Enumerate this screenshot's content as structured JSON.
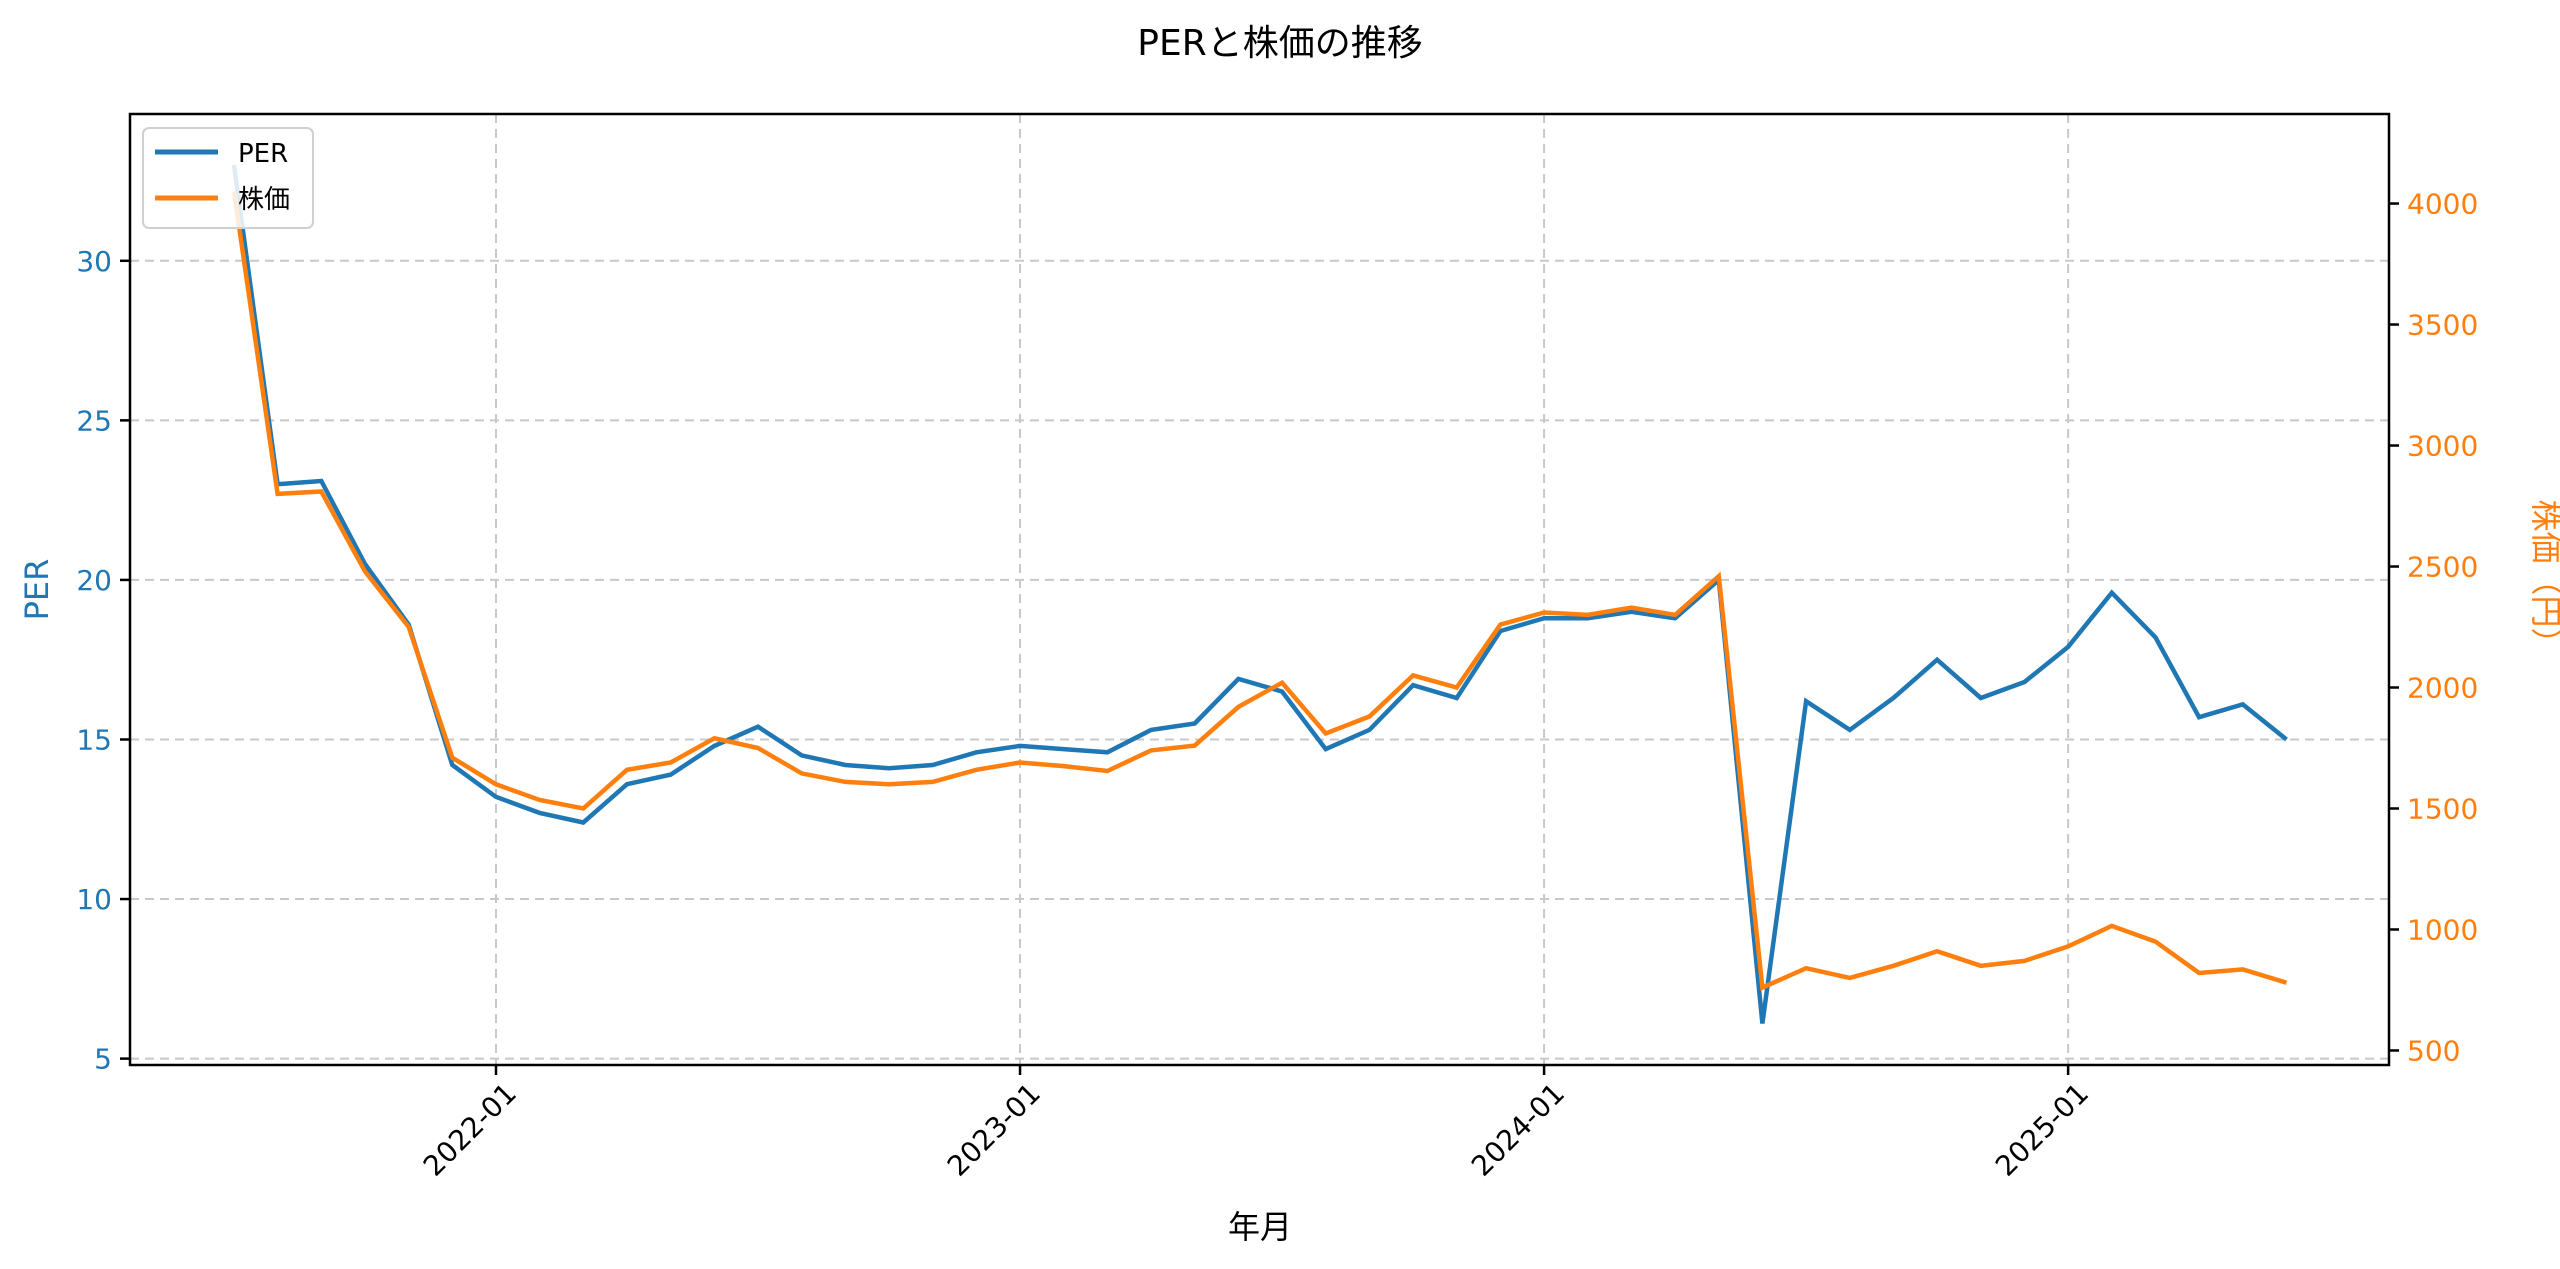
{
  "chart_data": {
    "type": "line",
    "title": "PERと株価の推移",
    "xlabel": "年月",
    "ylabel": "PER",
    "ylabel_right": "株価（円）",
    "x": [
      "2021-07",
      "2021-08",
      "2021-09",
      "2021-10",
      "2021-11",
      "2021-12",
      "2022-01",
      "2022-02",
      "2022-03",
      "2022-04",
      "2022-05",
      "2022-06",
      "2022-07",
      "2022-08",
      "2022-09",
      "2022-10",
      "2022-11",
      "2022-12",
      "2023-01",
      "2023-02",
      "2023-03",
      "2023-04",
      "2023-05",
      "2023-06",
      "2023-07",
      "2023-08",
      "2023-09",
      "2023-10",
      "2023-11",
      "2023-12",
      "2024-01",
      "2024-02",
      "2024-03",
      "2024-04",
      "2024-05",
      "2024-06",
      "2024-07",
      "2024-08",
      "2024-09",
      "2024-10",
      "2024-11",
      "2024-12",
      "2025-01",
      "2025-02",
      "2025-03",
      "2025-04",
      "2025-05",
      "2025-06"
    ],
    "series": [
      {
        "name": "PER",
        "axis": "left",
        "color": "#1f77b4",
        "values": [
          33.0,
          23.0,
          23.1,
          20.5,
          18.6,
          14.2,
          13.2,
          12.7,
          12.4,
          13.6,
          13.9,
          14.8,
          15.4,
          14.5,
          14.2,
          14.1,
          14.2,
          14.6,
          14.8,
          14.7,
          14.6,
          15.3,
          15.5,
          16.9,
          16.5,
          14.7,
          15.3,
          16.7,
          16.3,
          18.4,
          18.8,
          18.8,
          19.0,
          18.8,
          20.0,
          6.1,
          16.2,
          15.3,
          16.3,
          17.5,
          16.3,
          16.8,
          17.9,
          19.6,
          18.2,
          15.7,
          16.1,
          15.0
        ]
      },
      {
        "name": "株価",
        "axis": "right",
        "color": "#ff7f0e",
        "values": [
          4050,
          2800,
          2810,
          2480,
          2250,
          1710,
          1600,
          1535,
          1500,
          1660,
          1690,
          1790,
          1750,
          1645,
          1610,
          1600,
          1610,
          1660,
          1690,
          1675,
          1655,
          1740,
          1760,
          1920,
          2020,
          1810,
          1880,
          2050,
          2000,
          2260,
          2310,
          2300,
          2330,
          2300,
          2460,
          760,
          840,
          800,
          850,
          910,
          850,
          870,
          930,
          1015,
          950,
          820,
          835,
          780
        ]
      }
    ],
    "xticks": [
      "2022-01",
      "2023-01",
      "2024-01",
      "2025-01"
    ],
    "yticks_left": [
      5,
      10,
      15,
      20,
      25,
      30
    ],
    "yticks_right": [
      500,
      1000,
      1500,
      2000,
      2500,
      3000,
      3500,
      4000
    ],
    "ylim_left": [
      4.8,
      34.6
    ],
    "ylim_right": [
      440,
      4370
    ],
    "grid": true,
    "legend_position": "upper left"
  },
  "legend": {
    "per_label": "PER",
    "price_label": "株価"
  }
}
